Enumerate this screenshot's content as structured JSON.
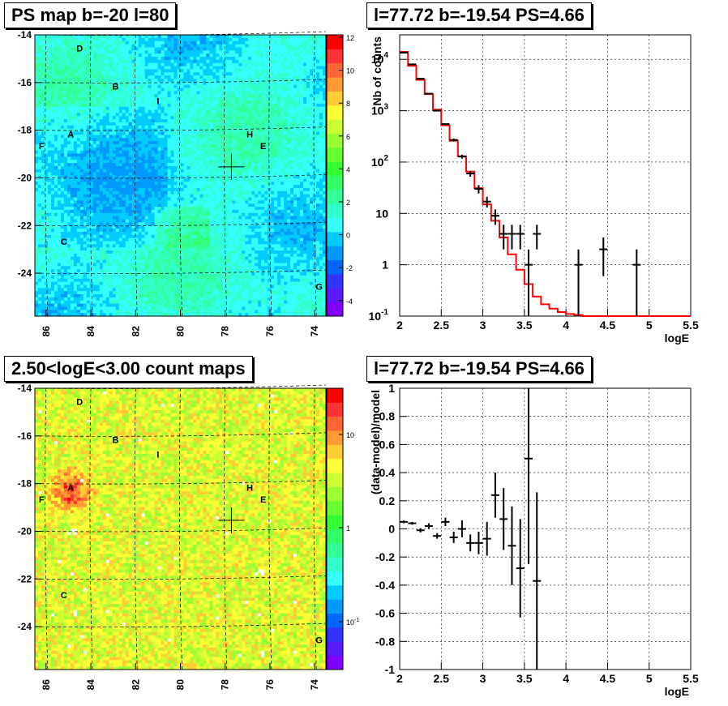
{
  "panels": {
    "ps_map": {
      "title": "PS map b=-20 l=80",
      "palette_ticks": [
        "12",
        "10",
        "8",
        "6",
        "4",
        "2",
        "0",
        "-2",
        "-4"
      ]
    },
    "count_map": {
      "title": "2.50<logE<3.00 count maps",
      "palette_ticks": [
        "10",
        "1",
        "10"
      ],
      "palette_tick_exp": [
        "",
        "",
        "-1"
      ]
    },
    "spectrum": {
      "title": "l=77.72 b=-19.54 PS=4.66"
    },
    "residual": {
      "title": "l=77.72 b=-19.54 PS=4.66"
    }
  },
  "map_axes": {
    "x_ticks": [
      "86",
      "84",
      "82",
      "80",
      "78",
      "76",
      "74"
    ],
    "y_ticks": [
      "-14",
      "-16",
      "-18",
      "-20",
      "-22",
      "-24"
    ]
  },
  "sources": [
    {
      "label": "D",
      "l": 84.5,
      "b": -14.7
    },
    {
      "label": "B",
      "l": 82.9,
      "b": -16.3
    },
    {
      "label": "I",
      "l": 81.0,
      "b": -16.9
    },
    {
      "label": "A",
      "l": 84.9,
      "b": -18.3
    },
    {
      "label": "F",
      "l": 86.2,
      "b": -18.8
    },
    {
      "label": "H",
      "l": 76.9,
      "b": -18.3
    },
    {
      "label": "E",
      "l": 76.3,
      "b": -18.8
    },
    {
      "label": "C",
      "l": 85.2,
      "b": -22.8
    },
    {
      "label": "G",
      "l": 73.8,
      "b": -24.7
    }
  ],
  "marker": {
    "l": 77.72,
    "b": -19.54
  },
  "chart_data": [
    {
      "type": "heatmap",
      "title": "PS map b=-20 l=80",
      "xlim": [
        86.5,
        73.5
      ],
      "ylim": [
        -25.8,
        -14
      ],
      "zlim": [
        -5,
        12
      ],
      "colorbar_ticks": [
        12,
        10,
        8,
        6,
        4,
        2,
        0,
        -2,
        -4
      ]
    },
    {
      "type": "line",
      "title": "l=77.72 b=-19.54 PS=4.66",
      "xlabel": "logE",
      "ylabel": "Nb of counts",
      "xlim": [
        2,
        5.5
      ],
      "ylim": [
        0.1,
        30000
      ],
      "yscale": "log",
      "x_ticks": [
        "2",
        "2.5",
        "3",
        "3.5",
        "4",
        "4.5",
        "5",
        "5.5"
      ],
      "y_ticks": [
        {
          "base": "10",
          "exp": "4",
          "v": 10000
        },
        {
          "base": "10",
          "exp": "3",
          "v": 1000
        },
        {
          "base": "10",
          "exp": "2",
          "v": 100
        },
        {
          "base": "10",
          "exp": "",
          "v": 10
        },
        {
          "base": "1",
          "exp": "",
          "v": 1
        },
        {
          "base": "10",
          "exp": "-1",
          "v": 0.1
        }
      ],
      "model_edges": [
        2,
        2.1,
        2.2,
        2.3,
        2.4,
        2.5,
        2.6,
        2.7,
        2.8,
        2.9,
        3.0,
        3.1,
        3.2,
        3.3,
        3.4,
        3.5,
        3.6,
        3.7,
        3.8,
        3.9,
        4.0,
        4.1,
        4.2,
        4.3,
        4.4,
        4.5,
        4.6,
        4.7,
        4.8,
        4.9,
        5.0,
        5.1,
        5.2,
        5.3,
        5.4,
        5.5
      ],
      "model": [
        14000,
        7500,
        4000,
        2100,
        1050,
        520,
        260,
        130,
        65,
        31,
        15,
        7.2,
        3.4,
        1.6,
        0.8,
        0.42,
        0.24,
        0.17,
        0.14,
        0.12,
        0.11,
        0.105,
        0.1,
        0.1,
        0.1,
        0.1,
        0.1,
        0.1,
        0.1,
        0.1,
        0.1,
        0.1,
        0.1,
        0.1,
        0.1
      ],
      "data_points": [
        {
          "x": 2.05,
          "y": 13500,
          "err": 120
        },
        {
          "x": 2.15,
          "y": 8000,
          "err": 90
        },
        {
          "x": 2.25,
          "y": 4200,
          "err": 65
        },
        {
          "x": 2.35,
          "y": 2150,
          "err": 46
        },
        {
          "x": 2.45,
          "y": 1000,
          "err": 32
        },
        {
          "x": 2.55,
          "y": 550,
          "err": 23
        },
        {
          "x": 2.65,
          "y": 270,
          "err": 16
        },
        {
          "x": 2.75,
          "y": 128,
          "err": 11
        },
        {
          "x": 2.85,
          "y": 60,
          "err": 8
        },
        {
          "x": 2.95,
          "y": 30,
          "err": 5.5
        },
        {
          "x": 3.05,
          "y": 17,
          "err": 4
        },
        {
          "x": 3.15,
          "y": 9,
          "err": 3
        },
        {
          "x": 3.25,
          "y": 4,
          "err": 2
        },
        {
          "x": 3.35,
          "y": 4,
          "err": 2
        },
        {
          "x": 3.45,
          "y": 4,
          "err": 2
        },
        {
          "x": 3.55,
          "y": 1,
          "err": 0.99
        },
        {
          "x": 3.65,
          "y": 4,
          "err": 2
        },
        {
          "x": 4.15,
          "y": 1,
          "err": 0.99
        },
        {
          "x": 4.45,
          "y": 2,
          "err": 1.4
        },
        {
          "x": 4.85,
          "y": 1,
          "err": 0.99
        }
      ]
    },
    {
      "type": "heatmap",
      "title": "2.50<logE<3.00 count maps",
      "xlim": [
        86.5,
        73.5
      ],
      "ylim": [
        -25.8,
        -14
      ],
      "zscale": "log",
      "colorbar_ticks": [
        "10",
        "1",
        "10^-1"
      ]
    },
    {
      "type": "scatter",
      "title": "l=77.72 b=-19.54 PS=4.66",
      "xlabel": "logE",
      "ylabel": "(data-model)/model",
      "xlim": [
        2,
        5.5
      ],
      "ylim": [
        -1,
        1
      ],
      "x_ticks": [
        "2",
        "2.5",
        "3",
        "3.5",
        "4",
        "4.5",
        "5",
        "5.5"
      ],
      "y_ticks": [
        "1",
        "0.8",
        "0.6",
        "0.4",
        "0.2",
        "0",
        "-0.2",
        "-0.4",
        "-0.6",
        "-0.8",
        "-1"
      ],
      "points": [
        {
          "x": 2.05,
          "y": 0.05,
          "err": 0.01
        },
        {
          "x": 2.15,
          "y": 0.04,
          "err": 0.01
        },
        {
          "x": 2.25,
          "y": -0.01,
          "err": 0.015
        },
        {
          "x": 2.35,
          "y": 0.02,
          "err": 0.02
        },
        {
          "x": 2.45,
          "y": -0.05,
          "err": 0.02
        },
        {
          "x": 2.55,
          "y": 0.05,
          "err": 0.03
        },
        {
          "x": 2.65,
          "y": -0.06,
          "err": 0.04
        },
        {
          "x": 2.75,
          "y": 0.0,
          "err": 0.06
        },
        {
          "x": 2.85,
          "y": -0.1,
          "err": 0.06
        },
        {
          "x": 2.95,
          "y": -0.1,
          "err": 0.08
        },
        {
          "x": 3.05,
          "y": -0.07,
          "err": 0.12
        },
        {
          "x": 3.15,
          "y": 0.24,
          "err": 0.16
        },
        {
          "x": 3.25,
          "y": 0.07,
          "err": 0.22
        },
        {
          "x": 3.35,
          "y": -0.12,
          "err": 0.28
        },
        {
          "x": 3.45,
          "y": -0.28,
          "err": 0.35
        },
        {
          "x": 3.55,
          "y": 0.5,
          "err": 0.75
        },
        {
          "x": 3.65,
          "y": -0.37,
          "err": 0.63
        }
      ]
    }
  ]
}
